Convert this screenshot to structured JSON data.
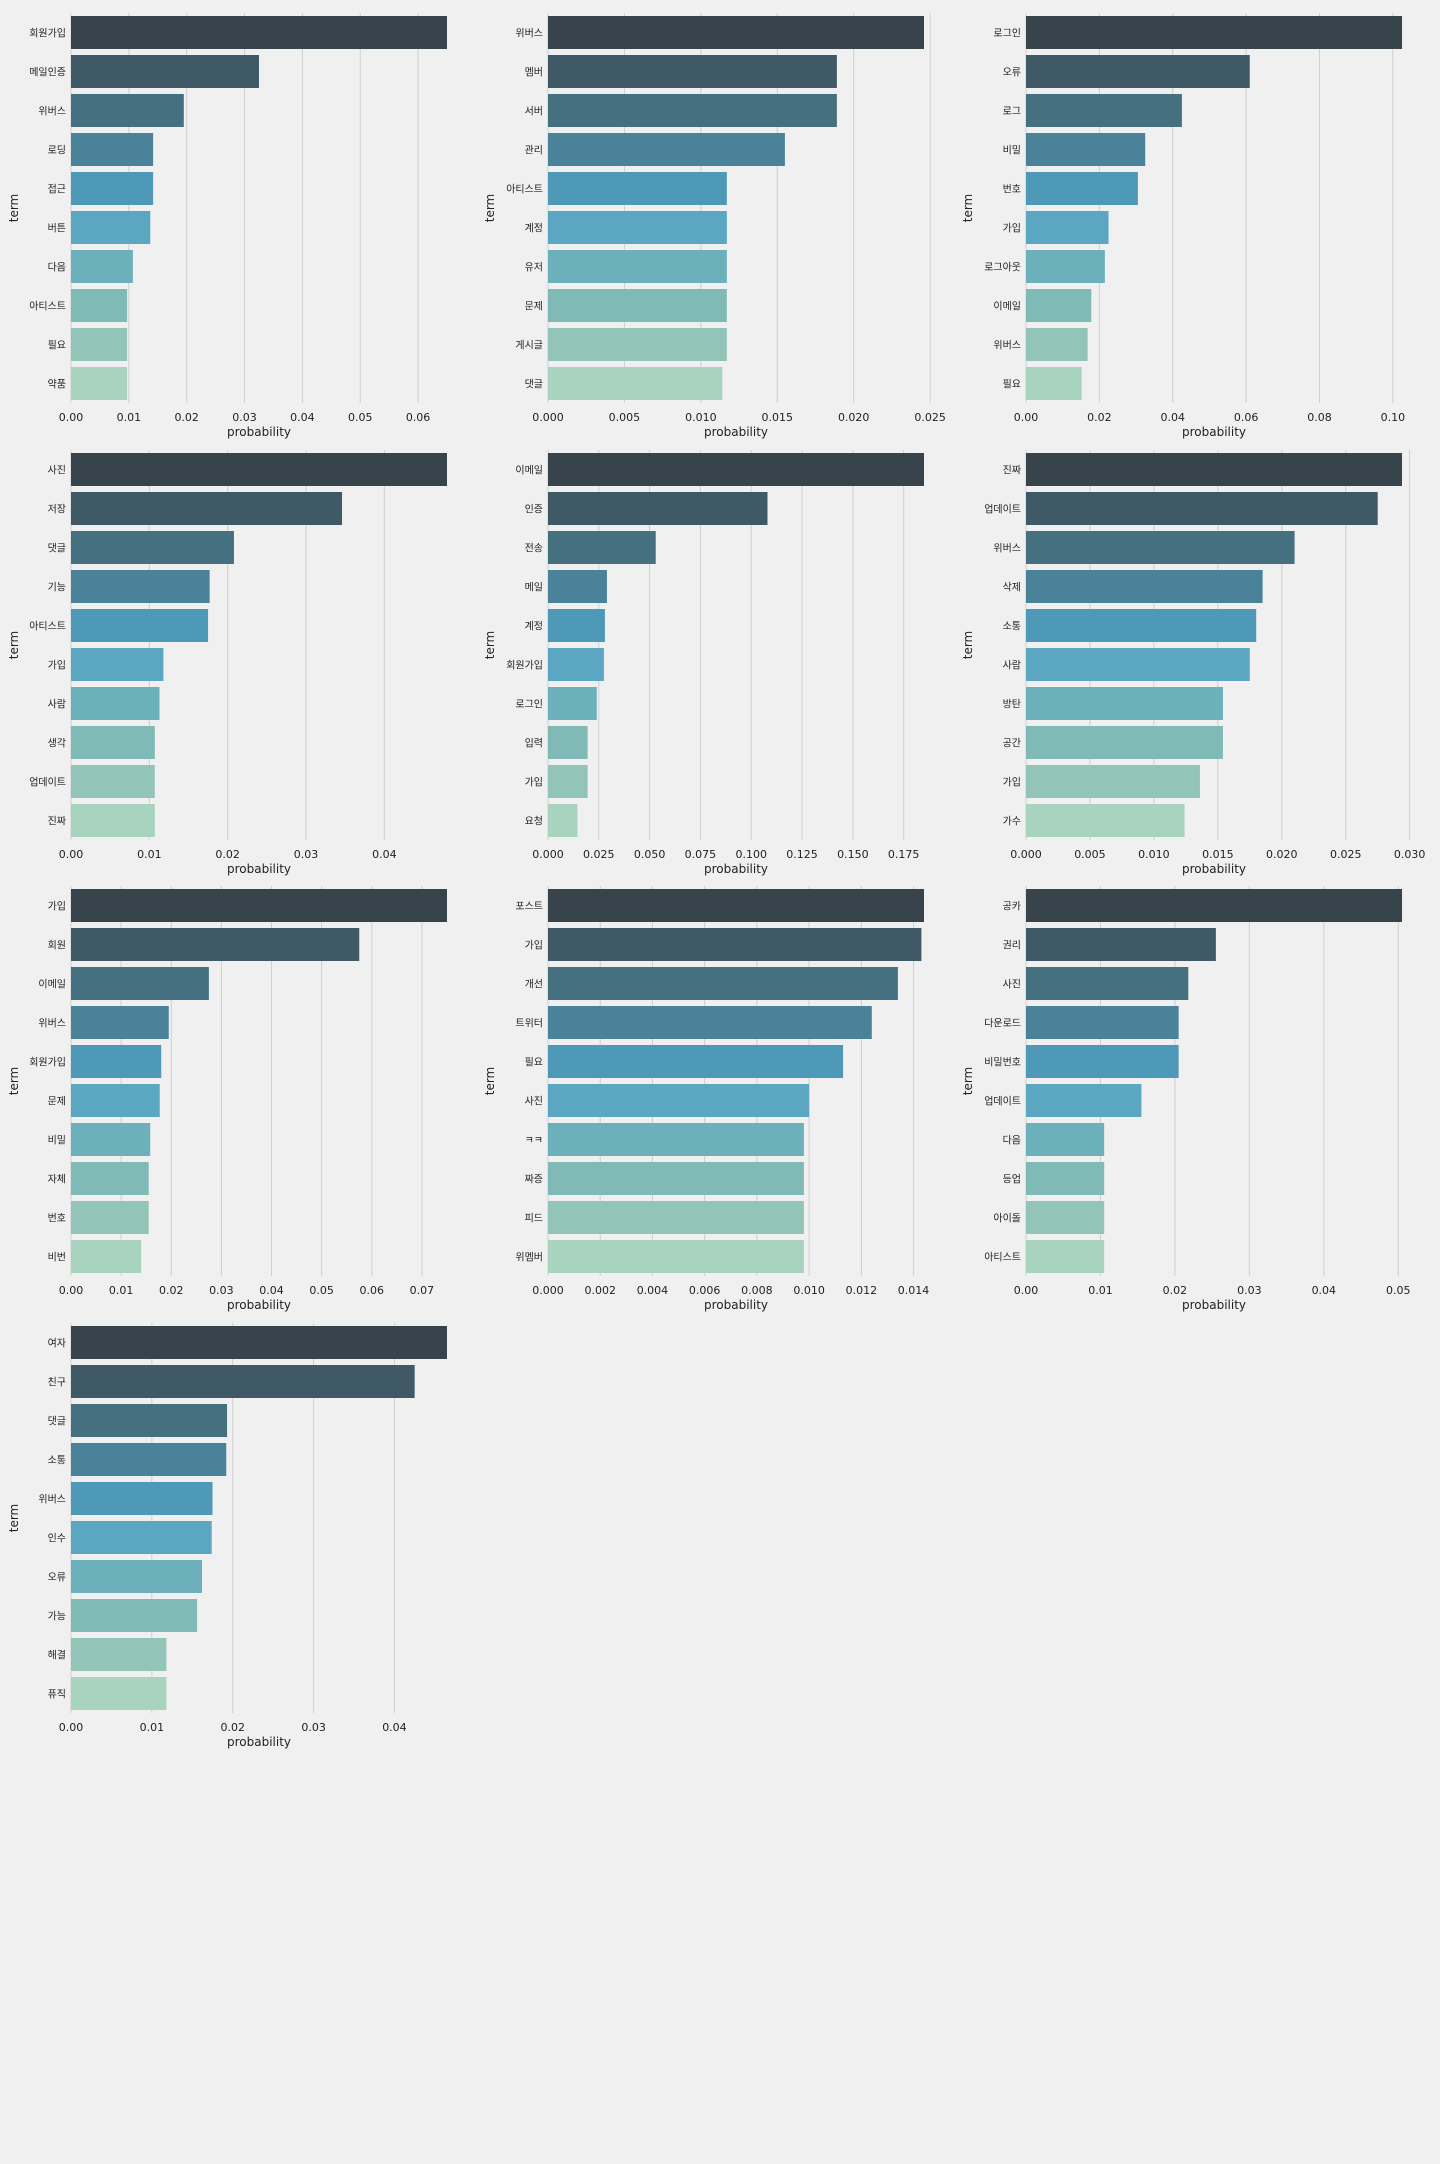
{
  "axis_labels": {
    "x": "probability",
    "y": "term"
  },
  "palette": [
    "#37444b",
    "#3f5a66",
    "#44707f",
    "#4a8299",
    "#4f99b8",
    "#5ba6c1",
    "#6cb0bc",
    "#80bab7",
    "#93c4b8",
    "#a8d4bf"
  ],
  "grid_color": "#cfcfcf",
  "chart_data": [
    {
      "type": "bar",
      "orientation": "horizontal",
      "xlabel": "probability",
      "ylabel": "term",
      "categories": [
        "회원가입",
        "메일인증",
        "위버스",
        "로딩",
        "접근",
        "버튼",
        "다음",
        "아티스트",
        "필요",
        "약품"
      ],
      "values": [
        0.065,
        0.0325,
        0.0195,
        0.0142,
        0.0142,
        0.0137,
        0.0107,
        0.0097,
        0.0097,
        0.0097
      ],
      "xlim": [
        0,
        0.065
      ],
      "xticks": [
        0.0,
        0.01,
        0.02,
        0.03,
        0.04,
        0.05,
        0.06
      ],
      "xtick_labels": [
        "0.00",
        "0.01",
        "0.02",
        "0.03",
        "0.04",
        "0.05",
        "0.06"
      ],
      "grid": true
    },
    {
      "type": "bar",
      "orientation": "horizontal",
      "xlabel": "probability",
      "ylabel": "term",
      "categories": [
        "위버스",
        "멤버",
        "서버",
        "관리",
        "아티스트",
        "계정",
        "유저",
        "문제",
        "게시글",
        "댓글"
      ],
      "values": [
        0.0246,
        0.0189,
        0.0189,
        0.0155,
        0.0117,
        0.0117,
        0.0117,
        0.0117,
        0.0117,
        0.0114
      ],
      "xlim": [
        0,
        0.0246
      ],
      "xticks": [
        0.0,
        0.005,
        0.01,
        0.015,
        0.02,
        0.025
      ],
      "xtick_labels": [
        "0.000",
        "0.005",
        "0.010",
        "0.015",
        "0.020",
        "0.025"
      ],
      "grid": true
    },
    {
      "type": "bar",
      "orientation": "horizontal",
      "xlabel": "probability",
      "ylabel": "term",
      "categories": [
        "로그인",
        "오류",
        "로그",
        "비밀",
        "번호",
        "가입",
        "로그아웃",
        "이메일",
        "위버스",
        "필요"
      ],
      "values": [
        0.1025,
        0.061,
        0.0425,
        0.0325,
        0.0305,
        0.0225,
        0.0215,
        0.0178,
        0.0168,
        0.0152
      ],
      "xlim": [
        0,
        0.1025
      ],
      "xticks": [
        0.0,
        0.02,
        0.04,
        0.06,
        0.08,
        0.1
      ],
      "xtick_labels": [
        "0.00",
        "0.02",
        "0.04",
        "0.06",
        "0.08",
        "0.10"
      ],
      "grid": true
    },
    {
      "type": "bar",
      "orientation": "horizontal",
      "xlabel": "probability",
      "ylabel": "term",
      "categories": [
        "사진",
        "저장",
        "댓글",
        "기능",
        "아티스트",
        "가입",
        "사람",
        "생각",
        "업데이트",
        "진짜"
      ],
      "values": [
        0.048,
        0.0346,
        0.0208,
        0.0177,
        0.0175,
        0.0118,
        0.0113,
        0.0107,
        0.0107,
        0.0107
      ],
      "xlim": [
        0,
        0.048
      ],
      "xticks": [
        0.0,
        0.01,
        0.02,
        0.03,
        0.04,
        0.05
      ],
      "xtick_labels": [
        "0.00",
        "0.01",
        "0.02",
        "0.03",
        "0.04",
        "0.05"
      ],
      "grid": true
    },
    {
      "type": "bar",
      "orientation": "horizontal",
      "xlabel": "probability",
      "ylabel": "term",
      "categories": [
        "이메일",
        "인증",
        "전송",
        "메일",
        "계정",
        "회원가입",
        "로그인",
        "입력",
        "가입",
        "요청"
      ],
      "values": [
        0.185,
        0.108,
        0.053,
        0.029,
        0.028,
        0.0275,
        0.024,
        0.0195,
        0.0195,
        0.0145
      ],
      "xlim": [
        0,
        0.185
      ],
      "xticks": [
        0.0,
        0.025,
        0.05,
        0.075,
        0.1,
        0.125,
        0.15,
        0.175
      ],
      "xtick_labels": [
        "0.000",
        "0.025",
        "0.050",
        "0.075",
        "0.100",
        "0.125",
        "0.150",
        "0.175"
      ],
      "grid": true
    },
    {
      "type": "bar",
      "orientation": "horizontal",
      "xlabel": "probability",
      "ylabel": "term",
      "categories": [
        "진짜",
        "업데이트",
        "위버스",
        "삭제",
        "소통",
        "사람",
        "방탄",
        "공간",
        "가입",
        "가수"
      ],
      "values": [
        0.0294,
        0.0275,
        0.021,
        0.0185,
        0.018,
        0.0175,
        0.0154,
        0.0154,
        0.0136,
        0.0124
      ],
      "xlim": [
        0,
        0.0294
      ],
      "xticks": [
        0.0,
        0.005,
        0.01,
        0.015,
        0.02,
        0.025,
        0.03
      ],
      "xtick_labels": [
        "0.000",
        "0.005",
        "0.010",
        "0.015",
        "0.020",
        "0.025",
        "0.030"
      ],
      "grid": true
    },
    {
      "type": "bar",
      "orientation": "horizontal",
      "xlabel": "probability",
      "ylabel": "term",
      "categories": [
        "가입",
        "회원",
        "이메일",
        "위버스",
        "회원가입",
        "문제",
        "비밀",
        "자체",
        "번호",
        "비번"
      ],
      "values": [
        0.075,
        0.0575,
        0.0275,
        0.0195,
        0.018,
        0.0177,
        0.0158,
        0.0155,
        0.0155,
        0.014
      ],
      "xlim": [
        0,
        0.075
      ],
      "xticks": [
        0.0,
        0.01,
        0.02,
        0.03,
        0.04,
        0.05,
        0.06,
        0.07
      ],
      "xtick_labels": [
        "0.00",
        "0.01",
        "0.02",
        "0.03",
        "0.04",
        "0.05",
        "0.06",
        "0.07"
      ],
      "grid": true
    },
    {
      "type": "bar",
      "orientation": "horizontal",
      "xlabel": "probability",
      "ylabel": "term",
      "categories": [
        "포스트",
        "가입",
        "개선",
        "트위터",
        "필요",
        "사진",
        "ㅋㅋ",
        "짜증",
        "피드",
        "위멤버"
      ],
      "values": [
        0.0144,
        0.0143,
        0.0134,
        0.0124,
        0.0113,
        0.01,
        0.0098,
        0.0098,
        0.0098,
        0.0098
      ],
      "xlim": [
        0,
        0.0144
      ],
      "xticks": [
        0.0,
        0.002,
        0.004,
        0.006,
        0.008,
        0.01,
        0.012,
        0.014
      ],
      "xtick_labels": [
        "0.000",
        "0.002",
        "0.004",
        "0.006",
        "0.008",
        "0.010",
        "0.012",
        "0.014"
      ],
      "grid": true
    },
    {
      "type": "bar",
      "orientation": "horizontal",
      "xlabel": "probability",
      "ylabel": "term",
      "categories": [
        "공카",
        "권리",
        "사진",
        "다운로드",
        "비밀번호",
        "업데이트",
        "다음",
        "등업",
        "아이돌",
        "아티스트"
      ],
      "values": [
        0.0505,
        0.0255,
        0.0218,
        0.0205,
        0.0205,
        0.0155,
        0.0105,
        0.0105,
        0.0105,
        0.0105
      ],
      "xlim": [
        0,
        0.0505
      ],
      "xticks": [
        0.0,
        0.01,
        0.02,
        0.03,
        0.04,
        0.05
      ],
      "xtick_labels": [
        "0.00",
        "0.01",
        "0.02",
        "0.03",
        "0.04",
        "0.05"
      ],
      "grid": true
    },
    {
      "type": "bar",
      "orientation": "horizontal",
      "xlabel": "probability",
      "ylabel": "term",
      "categories": [
        "여자",
        "친구",
        "댓글",
        "소통",
        "위버스",
        "인수",
        "오류",
        "가능",
        "해결",
        "퓨직"
      ],
      "values": [
        0.0465,
        0.0425,
        0.0193,
        0.0192,
        0.0175,
        0.0174,
        0.0162,
        0.0156,
        0.0118,
        0.0118
      ],
      "xlim": [
        0,
        0.0465
      ],
      "xticks": [
        0.0,
        0.01,
        0.02,
        0.03,
        0.04
      ],
      "xtick_labels": [
        "0.00",
        "0.01",
        "0.02",
        "0.03",
        "0.04"
      ],
      "grid": true
    }
  ]
}
